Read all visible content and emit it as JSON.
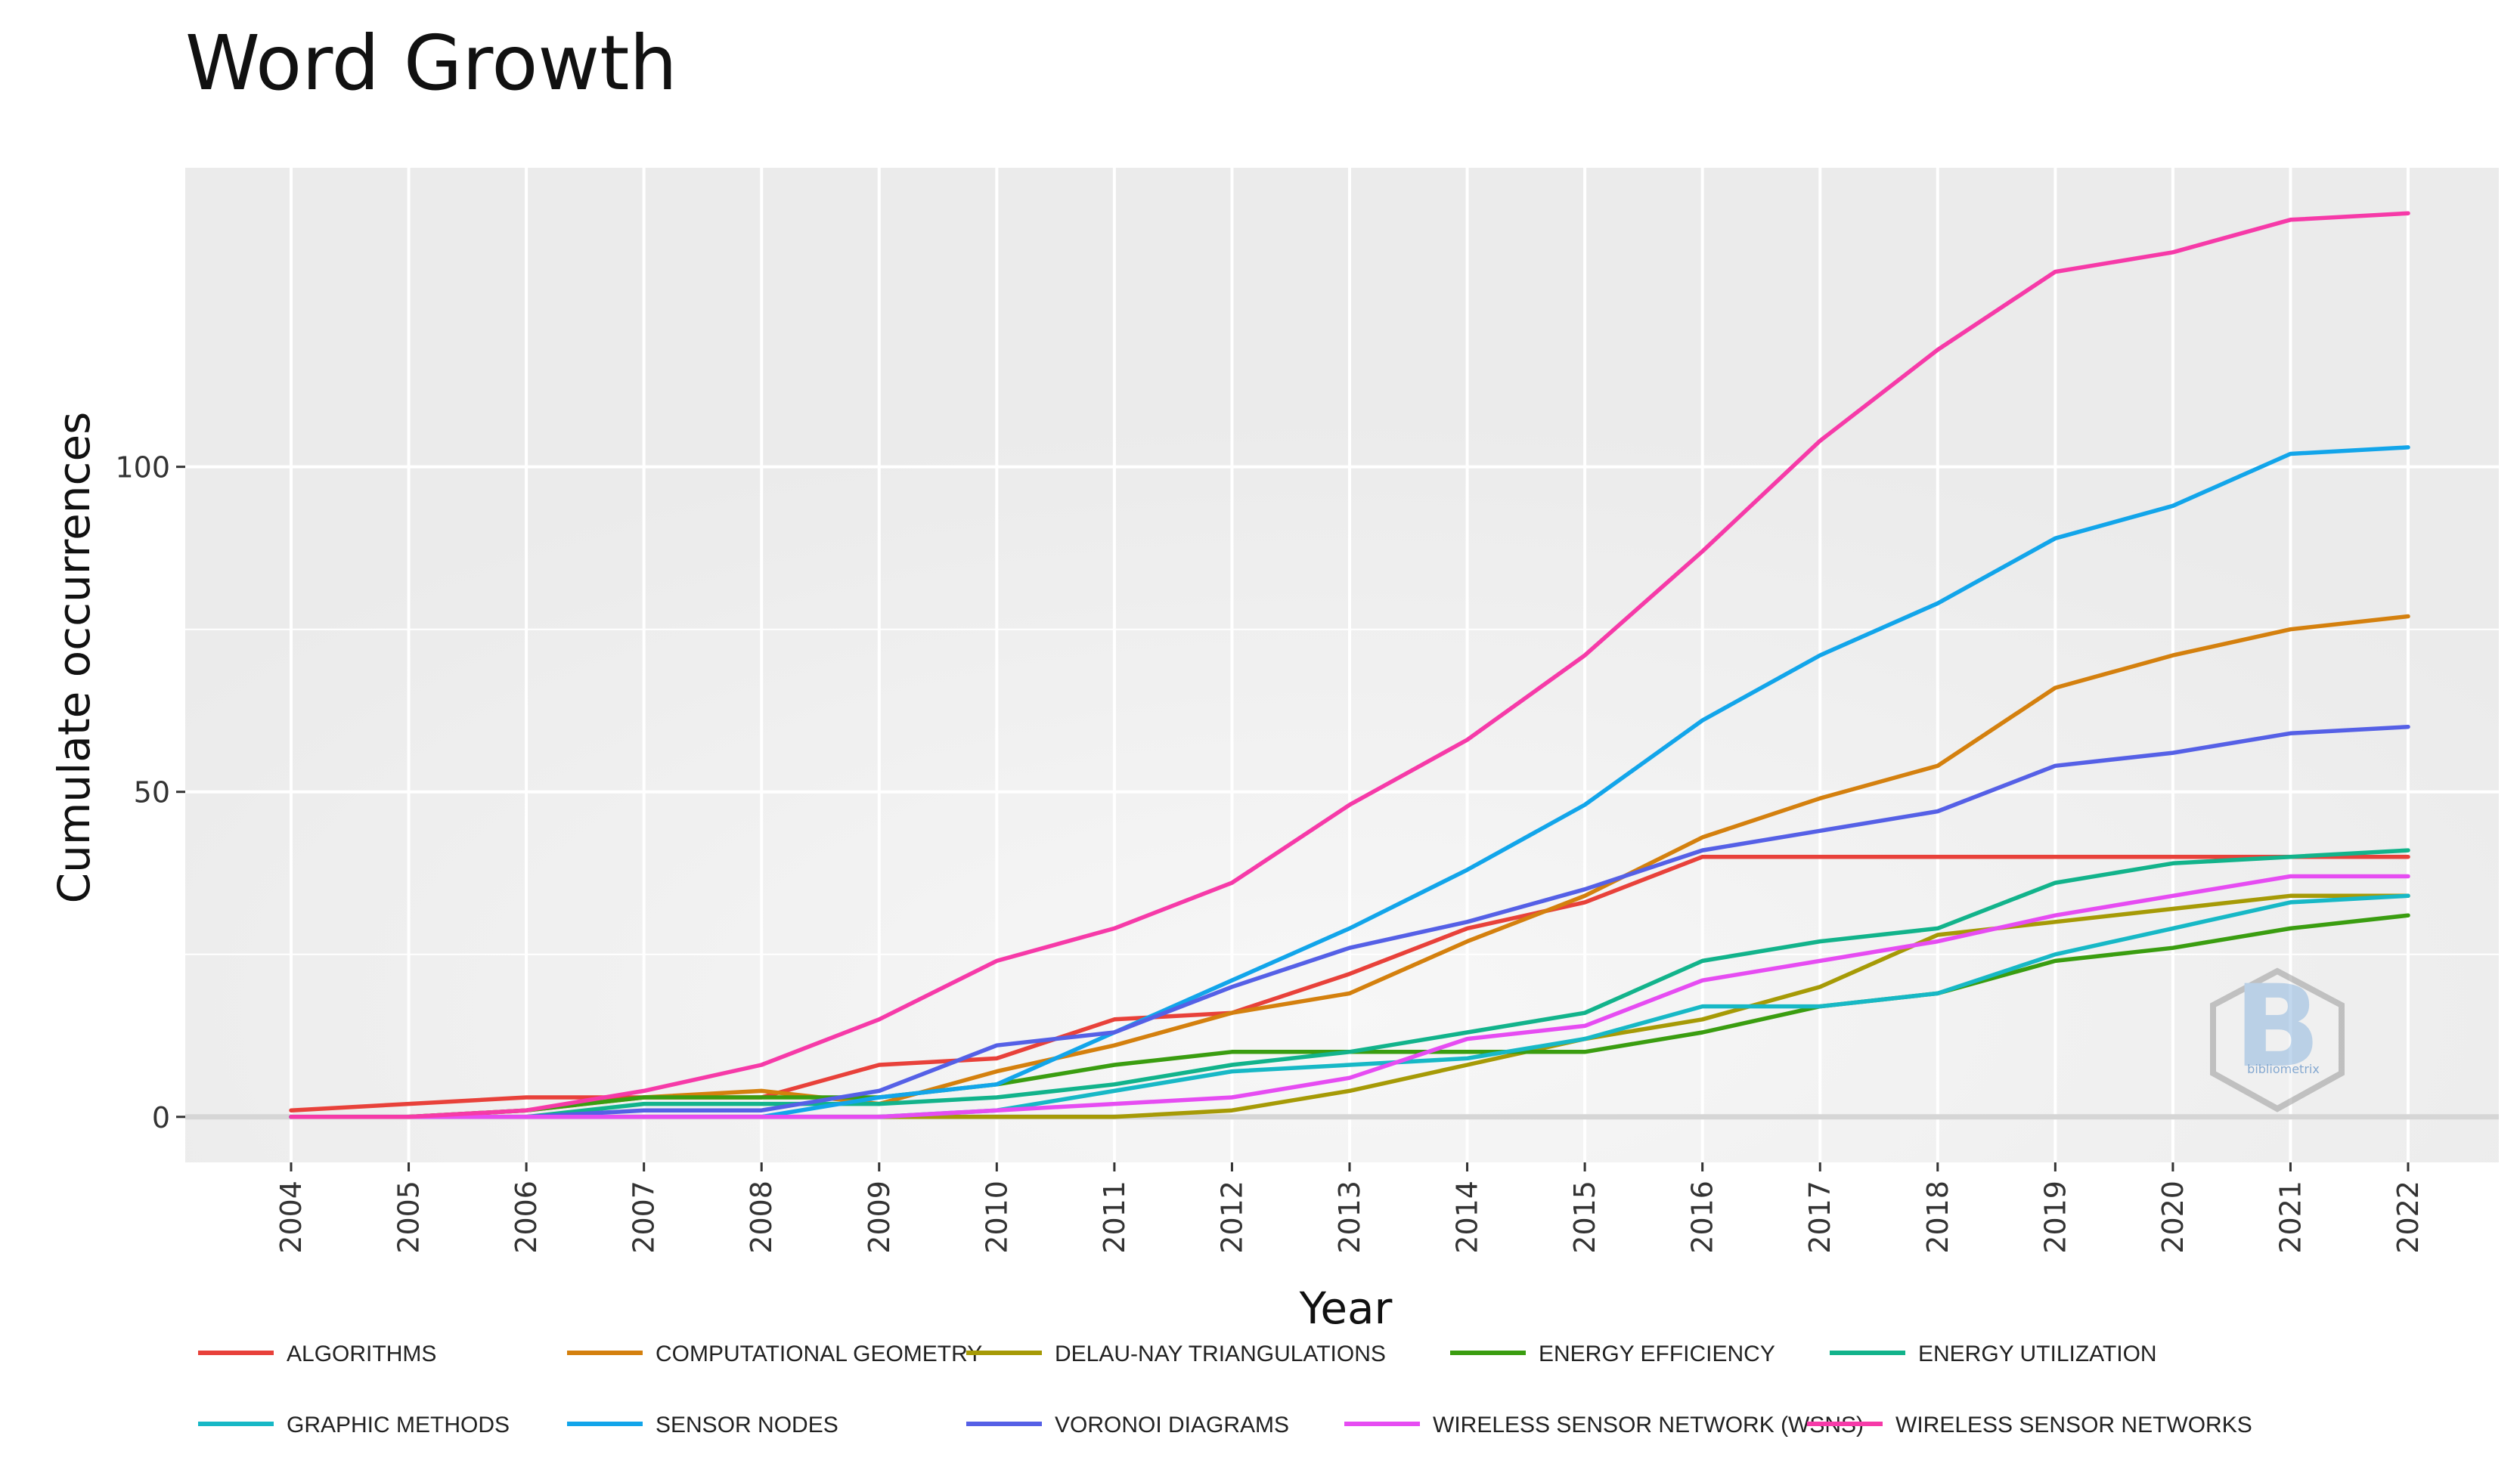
{
  "chart_data": {
    "type": "line",
    "title": "Word Growth",
    "xlabel": "Year",
    "ylabel": "Cumulate occurrences",
    "x": [
      2004,
      2005,
      2006,
      2007,
      2008,
      2009,
      2010,
      2011,
      2012,
      2013,
      2014,
      2015,
      2016,
      2017,
      2018,
      2019,
      2020,
      2021,
      2022
    ],
    "x_tick_labels": [
      "2004",
      "2005",
      "2006",
      "2007",
      "2008",
      "2009",
      "2010",
      "2011",
      "2012",
      "2013",
      "2014",
      "2015",
      "2016",
      "2017",
      "2018",
      "2019",
      "2020",
      "2021",
      "2022"
    ],
    "y_ticks": [
      0,
      50,
      100
    ],
    "y_tick_labels": [
      "0",
      "50",
      "100"
    ],
    "ylim": [
      -7,
      146
    ],
    "grid": true,
    "legend_position": "bottom",
    "series": [
      {
        "name": "ALGORITHMS",
        "color": "#E8413A",
        "values": [
          1,
          2,
          3,
          3,
          3,
          8,
          9,
          15,
          16,
          22,
          29,
          33,
          40,
          40,
          40,
          40,
          40,
          40,
          40
        ]
      },
      {
        "name": "COMPUTATIONAL GEOMETRY",
        "color": "#D4800E",
        "values": [
          0,
          0,
          1,
          3,
          4,
          2,
          7,
          11,
          16,
          19,
          27,
          34,
          43,
          49,
          54,
          66,
          71,
          75,
          77
        ]
      },
      {
        "name": "DELAU-NAY TRIANGULATIONS",
        "color": "#A69A06",
        "values": [
          0,
          0,
          0,
          0,
          0,
          0,
          0,
          0,
          1,
          4,
          8,
          12,
          15,
          20,
          28,
          30,
          32,
          34,
          34
        ]
      },
      {
        "name": "ENERGY EFFICIENCY",
        "color": "#3A9D10",
        "values": [
          0,
          0,
          1,
          3,
          3,
          3,
          5,
          8,
          10,
          10,
          10,
          10,
          13,
          17,
          19,
          24,
          26,
          29,
          31
        ]
      },
      {
        "name": "ENERGY UTILIZATION",
        "color": "#12B38B",
        "values": [
          0,
          0,
          0,
          2,
          2,
          2,
          3,
          5,
          8,
          10,
          13,
          16,
          24,
          27,
          29,
          36,
          39,
          40,
          41
        ]
      },
      {
        "name": "GRAPHIC METHODS",
        "color": "#17B8C6",
        "values": [
          0,
          0,
          0,
          0,
          0,
          0,
          1,
          4,
          7,
          8,
          9,
          12,
          17,
          17,
          19,
          25,
          29,
          33,
          34
        ]
      },
      {
        "name": "SENSOR NODES",
        "color": "#12A5EA",
        "values": [
          0,
          0,
          0,
          0,
          0,
          3,
          5,
          13,
          21,
          29,
          38,
          48,
          61,
          71,
          79,
          89,
          94,
          102,
          103
        ]
      },
      {
        "name": "VORONOI DIAGRAMS",
        "color": "#5560E6",
        "values": [
          0,
          0,
          0,
          1,
          1,
          4,
          11,
          13,
          20,
          26,
          30,
          35,
          41,
          44,
          47,
          54,
          56,
          59,
          60
        ]
      },
      {
        "name": "WIRELESS SENSOR NETWORK (WSNS)",
        "color": "#E64CF2",
        "values": [
          0,
          0,
          0,
          0,
          0,
          0,
          1,
          2,
          3,
          6,
          12,
          14,
          21,
          24,
          27,
          31,
          34,
          37,
          37
        ]
      },
      {
        "name": "WIRELESS SENSOR NETWORKS",
        "color": "#F63AA8",
        "values": [
          0,
          0,
          1,
          4,
          8,
          15,
          24,
          29,
          36,
          48,
          58,
          71,
          87,
          104,
          118,
          130,
          133,
          138,
          139
        ]
      }
    ],
    "watermark_text": "bibliometrix"
  },
  "colors": {
    "panel_background": "#EBEBEB",
    "gridline": "#FFFFFF",
    "axis_text": "#333333"
  }
}
